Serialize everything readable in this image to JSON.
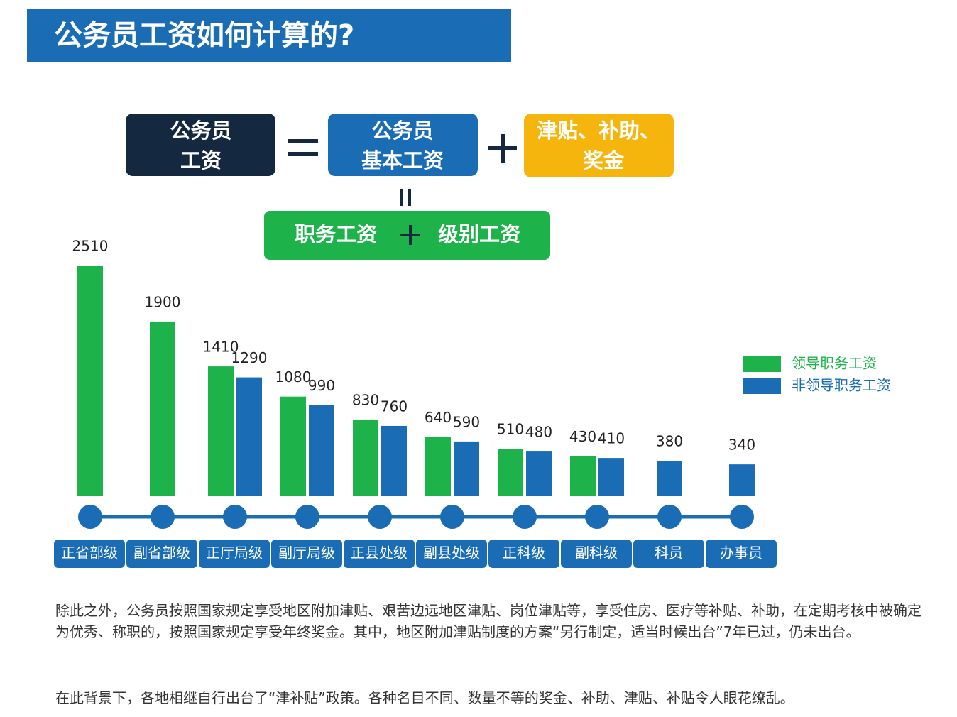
{
  "header": {
    "title": "公务员工资如何计算的?"
  },
  "formula": {
    "total": [
      "公务员",
      "工资"
    ],
    "basic": [
      "公务员",
      "基本工资"
    ],
    "allowance": [
      "津贴、补助、",
      "奖金"
    ],
    "basic_parts": [
      "职务工资",
      "级别工资"
    ]
  },
  "chart_data": {
    "type": "bar",
    "categories": [
      "正省部级",
      "副省部级",
      "正厅局级",
      "副厅局级",
      "正县处级",
      "副县处级",
      "正科级",
      "副科级",
      "科员",
      "办事员"
    ],
    "series": [
      {
        "name": "领导职务工资",
        "color": "#1db34a",
        "values": [
          2510,
          1900,
          1410,
          1080,
          830,
          640,
          510,
          430,
          null,
          null
        ]
      },
      {
        "name": "非领导职务工资",
        "color": "#1a6db5",
        "values": [
          null,
          null,
          1290,
          990,
          760,
          590,
          480,
          410,
          380,
          340
        ]
      }
    ],
    "legend": "right"
  },
  "paragraphs": [
    "除此之外，公务员按照国家规定享受地区附加津贴、艰苦边远地区津贴、岗位津贴等，享受住房、医疗等补贴、补助，在定期考核中被确定为优秀、称职的，按照国家规定享受年终奖金。其中，地区附加津贴制度的方案“另行制定，适当时候出台”7年已过，仍未出台。",
    "在此背景下，各地相继自行出台了“津补贴”政策。各种名目不同、数量不等的奖金、补助、津贴、补贴令人眼花缭乱。"
  ]
}
